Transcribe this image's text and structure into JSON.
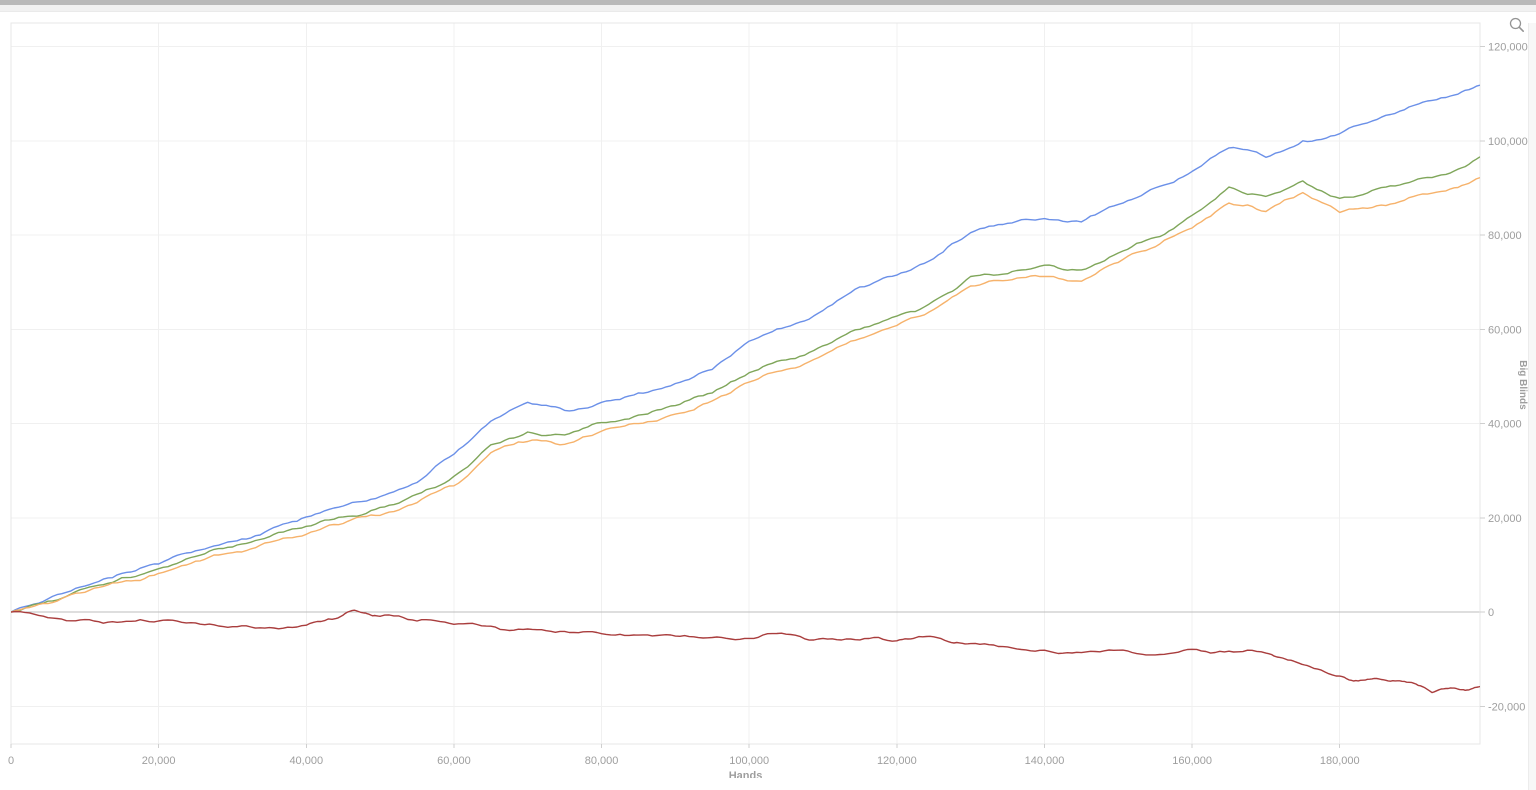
{
  "window": {
    "has_horizontal_scrollbar": true,
    "has_vertical_scrollbar_track": true
  },
  "controls": {
    "zoom_icon": "magnifier"
  },
  "style_colors": {
    "axis_text": "#9e9e9e",
    "grid_line": "#f0f0f0",
    "plot_border": "#e7e7e7",
    "zero_line": "#bcbcbc",
    "scrollbar_thumb": "#b9b9b9",
    "icon_grey": "#949494"
  },
  "chart_data": {
    "type": "line",
    "title": "",
    "xlabel": "Hands",
    "ylabel": "Big Blinds",
    "xlim": [
      0,
      199000
    ],
    "ylim": [
      -28000,
      125000
    ],
    "grid": true,
    "legend_position": "none",
    "x_ticks": [
      {
        "value": 0,
        "label": "0"
      },
      {
        "value": 20000,
        "label": "20,000"
      },
      {
        "value": 40000,
        "label": "40,000"
      },
      {
        "value": 60000,
        "label": "60,000"
      },
      {
        "value": 80000,
        "label": "80,000"
      },
      {
        "value": 100000,
        "label": "100,000"
      },
      {
        "value": 120000,
        "label": "120,000"
      },
      {
        "value": 140000,
        "label": "140,000"
      },
      {
        "value": 160000,
        "label": "160,000"
      },
      {
        "value": 180000,
        "label": "180,000"
      }
    ],
    "y_ticks": [
      {
        "value": -20000,
        "label": "-20,000"
      },
      {
        "value": 0,
        "label": "0"
      },
      {
        "value": 20000,
        "label": "20,000"
      },
      {
        "value": 40000,
        "label": "40,000"
      },
      {
        "value": 60000,
        "label": "60,000"
      },
      {
        "value": 80000,
        "label": "80,000"
      },
      {
        "value": 100000,
        "label": "100,000"
      },
      {
        "value": 120000,
        "label": "120,000"
      }
    ],
    "series": [
      {
        "name": "series-1-blue",
        "color": "#6b90e8",
        "points": [
          [
            0,
            0
          ],
          [
            5000,
            2800
          ],
          [
            10000,
            5500
          ],
          [
            15000,
            8200
          ],
          [
            20000,
            10200
          ],
          [
            25000,
            13000
          ],
          [
            30000,
            15000
          ],
          [
            35000,
            17500
          ],
          [
            40000,
            20200
          ],
          [
            45000,
            22500
          ],
          [
            50000,
            24500
          ],
          [
            55000,
            27500
          ],
          [
            60000,
            33500
          ],
          [
            65000,
            40500
          ],
          [
            70000,
            44500
          ],
          [
            75000,
            42800
          ],
          [
            80000,
            44500
          ],
          [
            85000,
            46500
          ],
          [
            90000,
            48500
          ],
          [
            95000,
            51500
          ],
          [
            100000,
            57500
          ],
          [
            105000,
            60500
          ],
          [
            110000,
            64000
          ],
          [
            115000,
            69000
          ],
          [
            120000,
            71500
          ],
          [
            125000,
            75000
          ],
          [
            130000,
            80500
          ],
          [
            135000,
            82500
          ],
          [
            140000,
            83500
          ],
          [
            145000,
            82800
          ],
          [
            150000,
            86500
          ],
          [
            155000,
            90000
          ],
          [
            160000,
            93500
          ],
          [
            165000,
            98500
          ],
          [
            170000,
            96500
          ],
          [
            175000,
            100000
          ],
          [
            180000,
            101500
          ],
          [
            185000,
            104500
          ],
          [
            190000,
            107500
          ],
          [
            195000,
            109500
          ],
          [
            199000,
            111800
          ]
        ]
      },
      {
        "name": "series-2-green",
        "color": "#7fa65a",
        "points": [
          [
            0,
            0
          ],
          [
            5000,
            2300
          ],
          [
            10000,
            5000
          ],
          [
            15000,
            7300
          ],
          [
            20000,
            9200
          ],
          [
            25000,
            11800
          ],
          [
            30000,
            13800
          ],
          [
            35000,
            16000
          ],
          [
            40000,
            18200
          ],
          [
            45000,
            20200
          ],
          [
            50000,
            22200
          ],
          [
            55000,
            25000
          ],
          [
            60000,
            28800
          ],
          [
            65000,
            35500
          ],
          [
            70000,
            38200
          ],
          [
            75000,
            37600
          ],
          [
            80000,
            40200
          ],
          [
            85000,
            41800
          ],
          [
            90000,
            43800
          ],
          [
            95000,
            46500
          ],
          [
            100000,
            50800
          ],
          [
            105000,
            53500
          ],
          [
            110000,
            56500
          ],
          [
            115000,
            60000
          ],
          [
            120000,
            62800
          ],
          [
            125000,
            66000
          ],
          [
            130000,
            71200
          ],
          [
            135000,
            71800
          ],
          [
            140000,
            73600
          ],
          [
            145000,
            72600
          ],
          [
            150000,
            76200
          ],
          [
            155000,
            79500
          ],
          [
            160000,
            84200
          ],
          [
            165000,
            90200
          ],
          [
            170000,
            88200
          ],
          [
            175000,
            91500
          ],
          [
            180000,
            87800
          ],
          [
            185000,
            89800
          ],
          [
            190000,
            91500
          ],
          [
            195000,
            93200
          ],
          [
            199000,
            96600
          ]
        ]
      },
      {
        "name": "series-3-orange",
        "color": "#f6b26b",
        "points": [
          [
            0,
            0
          ],
          [
            5000,
            1800
          ],
          [
            10000,
            4200
          ],
          [
            15000,
            6400
          ],
          [
            20000,
            8200
          ],
          [
            25000,
            10800
          ],
          [
            30000,
            12600
          ],
          [
            35000,
            14800
          ],
          [
            40000,
            16500
          ],
          [
            45000,
            18800
          ],
          [
            50000,
            20500
          ],
          [
            55000,
            23200
          ],
          [
            60000,
            26800
          ],
          [
            65000,
            33800
          ],
          [
            70000,
            36200
          ],
          [
            75000,
            35600
          ],
          [
            80000,
            38400
          ],
          [
            85000,
            40000
          ],
          [
            90000,
            42000
          ],
          [
            95000,
            44800
          ],
          [
            100000,
            48800
          ],
          [
            105000,
            51500
          ],
          [
            110000,
            54500
          ],
          [
            115000,
            58000
          ],
          [
            120000,
            60800
          ],
          [
            125000,
            64200
          ],
          [
            130000,
            69200
          ],
          [
            135000,
            70400
          ],
          [
            140000,
            71200
          ],
          [
            145000,
            70200
          ],
          [
            150000,
            74200
          ],
          [
            155000,
            77500
          ],
          [
            160000,
            81500
          ],
          [
            165000,
            86800
          ],
          [
            170000,
            85000
          ],
          [
            175000,
            89000
          ],
          [
            180000,
            84800
          ],
          [
            185000,
            86200
          ],
          [
            190000,
            88200
          ],
          [
            195000,
            89800
          ],
          [
            199000,
            92200
          ]
        ]
      },
      {
        "name": "series-4-red",
        "color": "#a93d3d",
        "points": [
          [
            0,
            0
          ],
          [
            5000,
            -1200
          ],
          [
            10000,
            -1600
          ],
          [
            15000,
            -2100
          ],
          [
            20000,
            -1900
          ],
          [
            25000,
            -2300
          ],
          [
            30000,
            -3100
          ],
          [
            35000,
            -3300
          ],
          [
            40000,
            -2800
          ],
          [
            44000,
            -1400
          ],
          [
            46500,
            400
          ],
          [
            48000,
            -200
          ],
          [
            50000,
            -900
          ],
          [
            55000,
            -1900
          ],
          [
            60000,
            -2600
          ],
          [
            65000,
            -3000
          ],
          [
            70000,
            -3600
          ],
          [
            75000,
            -4100
          ],
          [
            80000,
            -4600
          ],
          [
            85000,
            -4900
          ],
          [
            90000,
            -5100
          ],
          [
            95000,
            -5400
          ],
          [
            100000,
            -5600
          ],
          [
            105000,
            -4700
          ],
          [
            110000,
            -5600
          ],
          [
            115000,
            -5900
          ],
          [
            120000,
            -6100
          ],
          [
            123000,
            -5200
          ],
          [
            127000,
            -6300
          ],
          [
            130000,
            -6700
          ],
          [
            135000,
            -7400
          ],
          [
            140000,
            -8100
          ],
          [
            145000,
            -8600
          ],
          [
            150000,
            -8100
          ],
          [
            155000,
            -9100
          ],
          [
            160000,
            -7900
          ],
          [
            165000,
            -8300
          ],
          [
            170000,
            -8700
          ],
          [
            173000,
            -10200
          ],
          [
            176000,
            -11600
          ],
          [
            180000,
            -13600
          ],
          [
            182500,
            -14600
          ],
          [
            185000,
            -14100
          ],
          [
            187500,
            -14600
          ],
          [
            190000,
            -15100
          ],
          [
            192500,
            -17100
          ],
          [
            195000,
            -16100
          ],
          [
            197000,
            -16600
          ],
          [
            199000,
            -15800
          ]
        ]
      }
    ]
  }
}
